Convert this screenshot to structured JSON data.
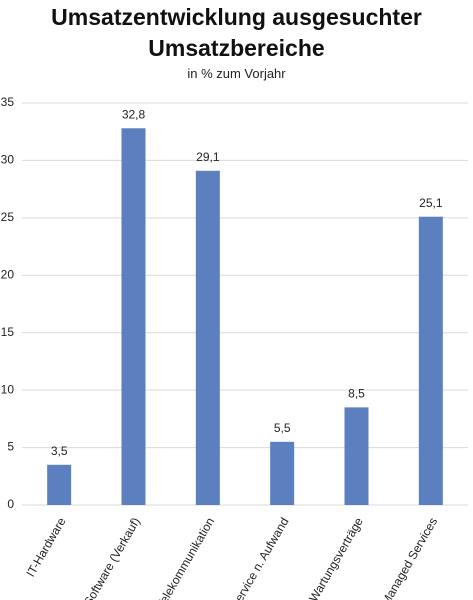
{
  "chart_data": {
    "type": "bar",
    "title": "Umsatzentwicklung ausgesuchter Umsatzbereiche",
    "subtitle": "in % zum Vorjahr",
    "categories": [
      "IT-Hardware",
      "Software (Verkauf)",
      "Telekommunikation",
      "Service n. Aufwand",
      "Wartungsverträge",
      "Managed Services"
    ],
    "values": [
      3.5,
      32.8,
      29.1,
      5.5,
      8.5,
      25.1
    ],
    "value_labels": [
      "3,5",
      "32,8",
      "29,1",
      "5,5",
      "8,5",
      "25,1"
    ],
    "color": "#5b7fbf",
    "ylim": [
      0,
      35
    ],
    "yticks": [
      0,
      5,
      10,
      15,
      20,
      25,
      30,
      35
    ],
    "grid": true
  }
}
